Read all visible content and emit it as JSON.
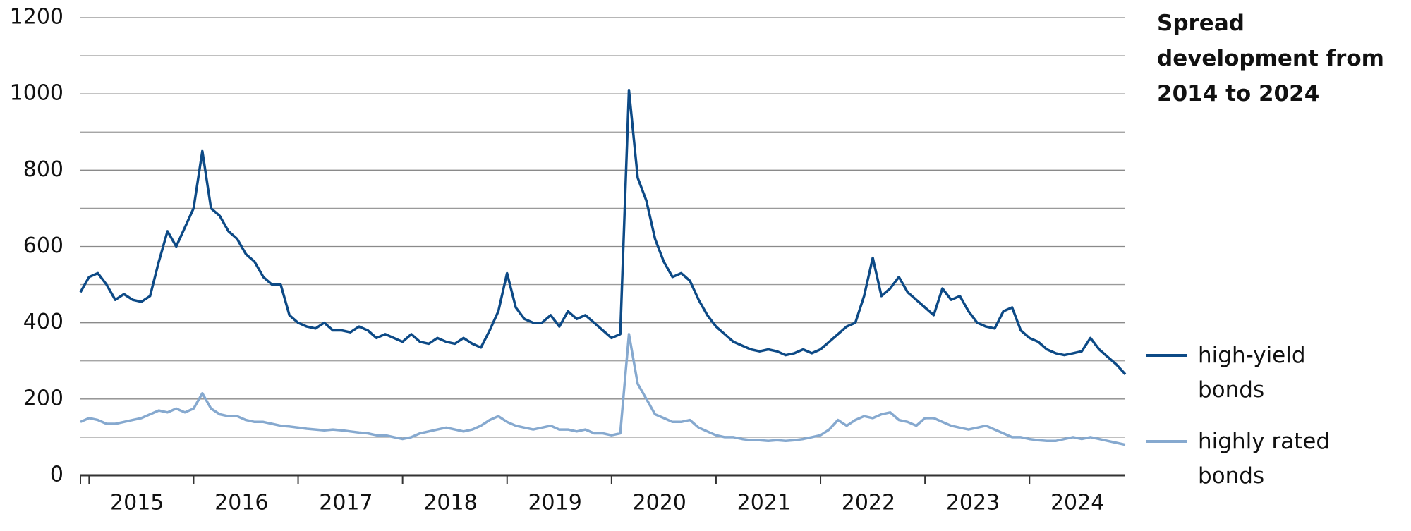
{
  "chart_data": {
    "type": "line",
    "title": "Spread development from 2014 to 2024",
    "categories": [
      null,
      "2015",
      null,
      null,
      null,
      null,
      null,
      null,
      null,
      null,
      null,
      null,
      null,
      "2016",
      null,
      null,
      null,
      null,
      null,
      null,
      null,
      null,
      null,
      null,
      null,
      "2017",
      null,
      null,
      null,
      null,
      null,
      null,
      null,
      null,
      null,
      null,
      null,
      "2018",
      null,
      null,
      null,
      null,
      null,
      null,
      null,
      null,
      null,
      null,
      null,
      "2019",
      null,
      null,
      null,
      null,
      null,
      null,
      null,
      null,
      null,
      null,
      null,
      "2020",
      null,
      null,
      null,
      null,
      null,
      null,
      null,
      null,
      null,
      null,
      null,
      "2021",
      null,
      null,
      null,
      null,
      null,
      null,
      null,
      null,
      null,
      null,
      null,
      "2022",
      null,
      null,
      null,
      null,
      null,
      null,
      null,
      null,
      null,
      null,
      null,
      "2023",
      null,
      null,
      null,
      null,
      null,
      null,
      null,
      null,
      null,
      null,
      null,
      "2024",
      null,
      null,
      null,
      null,
      null,
      null,
      null,
      null,
      null,
      null,
      null
    ],
    "series": [
      {
        "name": "high-yield bonds",
        "color": "#0d4a86",
        "values": [
          480,
          520,
          530,
          500,
          460,
          475,
          460,
          455,
          470,
          560,
          640,
          600,
          650,
          700,
          850,
          700,
          680,
          640,
          620,
          580,
          560,
          520,
          500,
          500,
          420,
          400,
          390,
          385,
          400,
          380,
          380,
          375,
          390,
          380,
          360,
          370,
          360,
          350,
          370,
          350,
          345,
          360,
          350,
          345,
          360,
          345,
          335,
          380,
          430,
          530,
          440,
          410,
          400,
          400,
          420,
          390,
          430,
          410,
          420,
          400,
          380,
          360,
          370,
          1010,
          780,
          720,
          620,
          560,
          520,
          530,
          510,
          460,
          420,
          390,
          370,
          350,
          340,
          330,
          325,
          330,
          325,
          315,
          320,
          330,
          320,
          330,
          350,
          370,
          390,
          400,
          470,
          570,
          470,
          490,
          520,
          480,
          460,
          440,
          420,
          490,
          460,
          470,
          430,
          400,
          390,
          385,
          430,
          440,
          380,
          360,
          350,
          330,
          320,
          315,
          320,
          325,
          360,
          330,
          310,
          290,
          265
        ]
      },
      {
        "name": "highly rated bonds",
        "color": "#86a9cf",
        "values": [
          140,
          150,
          145,
          135,
          135,
          140,
          145,
          150,
          160,
          170,
          165,
          175,
          165,
          175,
          215,
          175,
          160,
          155,
          155,
          145,
          140,
          140,
          135,
          130,
          128,
          125,
          122,
          120,
          118,
          120,
          118,
          115,
          112,
          110,
          105,
          105,
          100,
          95,
          100,
          110,
          115,
          120,
          125,
          120,
          115,
          120,
          130,
          145,
          155,
          140,
          130,
          125,
          120,
          125,
          130,
          120,
          120,
          115,
          120,
          110,
          110,
          105,
          110,
          370,
          240,
          200,
          160,
          150,
          140,
          140,
          145,
          125,
          115,
          105,
          100,
          100,
          95,
          92,
          92,
          90,
          92,
          90,
          92,
          95,
          100,
          105,
          120,
          145,
          130,
          145,
          155,
          150,
          160,
          165,
          145,
          140,
          130,
          150,
          150,
          140,
          130,
          125,
          120,
          125,
          130,
          120,
          110,
          100,
          100,
          95,
          92,
          90,
          90,
          95,
          100,
          95,
          100,
          95,
          90,
          85,
          80
        ]
      }
    ],
    "ylim": [
      0,
      1200
    ],
    "yticks": [
      0,
      200,
      400,
      600,
      800,
      1000,
      1200
    ],
    "yticks_minor": [
      100,
      300,
      500,
      700,
      900,
      1100
    ],
    "grid": true
  }
}
